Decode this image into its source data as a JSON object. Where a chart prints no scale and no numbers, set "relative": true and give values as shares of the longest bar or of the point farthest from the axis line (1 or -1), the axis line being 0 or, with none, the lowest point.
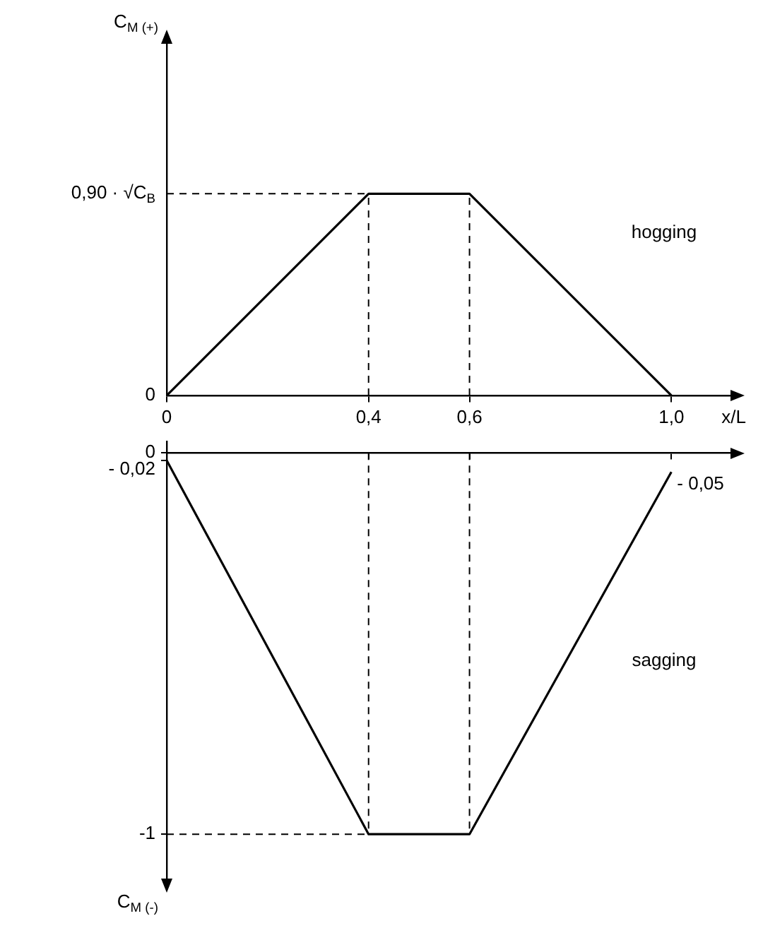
{
  "chart_data": [
    {
      "type": "line",
      "relative": true,
      "xlabel": "x/L",
      "ylabel": "C$_{M (+)}$",
      "x": [
        0,
        0.4,
        0.6,
        1.0
      ],
      "series": [
        {
          "color": "#000000",
          "values": [
            0,
            1,
            1,
            0
          ]
        }
      ],
      "xlim": [
        0,
        1.12
      ],
      "xticks": [
        0,
        {
          "value": 0.4,
          "label": "0,4"
        },
        {
          "value": 0.6,
          "label": "0,6"
        },
        {
          "value": 1.0,
          "label": "1,0"
        }
      ],
      "ref_lines": [
        {
          "axis": "y",
          "value": 1,
          "label": "0,90 · √C$_{B}$",
          "line_style": "dashed"
        },
        {
          "axis": "x",
          "value": 0.4,
          "line_style": "dashed"
        },
        {
          "axis": "x",
          "value": 0.6,
          "line_style": "dashed"
        }
      ],
      "annotations": [
        "hogging",
        {
          "text": "0",
          "x": 0,
          "y": 0
        }
      ],
      "grid": false,
      "legend": false,
      "marker": "none",
      "line_style": "solid"
    },
    {
      "type": "line",
      "ylabel": "C$_{M (-)}$",
      "x": [
        0,
        0.4,
        0.6,
        1.0
      ],
      "series": [
        {
          "color": "#000000",
          "values": [
            -0.02,
            -1,
            -1,
            -0.05
          ]
        }
      ],
      "xlim": [
        0,
        1.12
      ],
      "xticks": [
        0,
        0.4,
        0.6,
        1.0
      ],
      "ylim": [
        -1.12,
        0.03
      ],
      "yticks": [
        0,
        {
          "value": -0.02,
          "label": "- 0,02"
        },
        -1
      ],
      "ref_lines": [
        {
          "axis": "y",
          "value": -1,
          "line_style": "dashed"
        },
        {
          "axis": "x",
          "value": 0.4,
          "line_style": "dashed"
        },
        {
          "axis": "x",
          "value": 0.6,
          "line_style": "dashed"
        }
      ],
      "annotations": [
        "sagging",
        {
          "text": "- 0,05",
          "x": 1.0,
          "y": -0.05
        }
      ],
      "tick_labels": "y",
      "grid": false,
      "legend": false,
      "marker": "none",
      "line_style": "solid"
    }
  ]
}
